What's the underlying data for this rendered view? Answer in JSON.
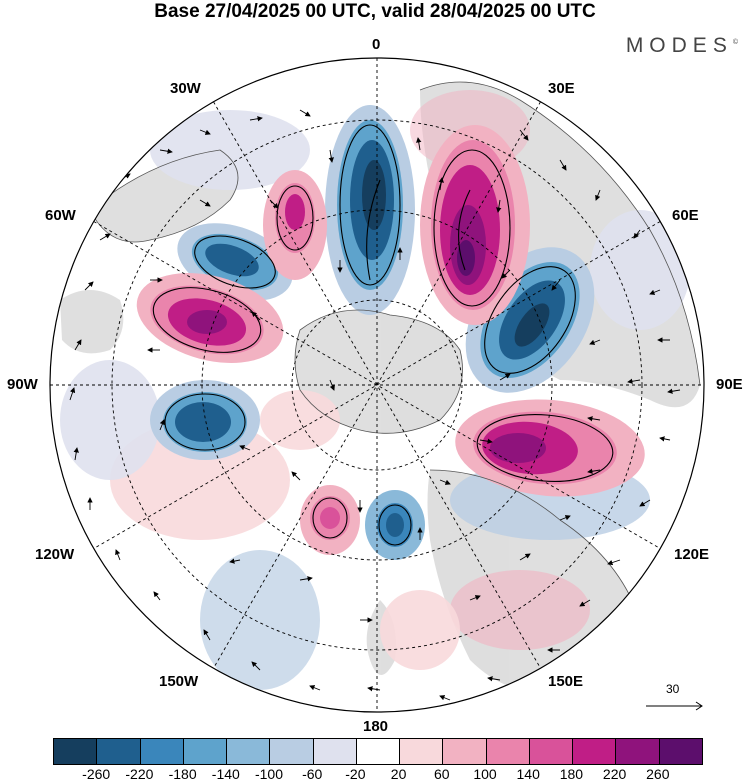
{
  "title": "Base 27/04/2025 00 UTC, valid 28/04/2025 00 UTC",
  "brand": "MODES",
  "brand_mark": "©",
  "longitude_labels": {
    "lon_0": "0",
    "lon_30e": "30E",
    "lon_60e": "60E",
    "lon_90e": "90E",
    "lon_120e": "120E",
    "lon_150e": "150E",
    "lon_180": "180",
    "lon_150w": "150W",
    "lon_120w": "120W",
    "lon_90w": "90W",
    "lon_60w": "60W",
    "lon_30w": "30W"
  },
  "vector_reference": {
    "value": "30"
  },
  "colorbar": {
    "colors": [
      "#153e5e",
      "#1f5f8e",
      "#3a86bb",
      "#5ea3cc",
      "#8ab9d9",
      "#b9cde3",
      "#dfe1ee",
      "#ffffff",
      "#f8d9dc",
      "#f2b2c2",
      "#ea84ac",
      "#d9529a",
      "#c01e86",
      "#8f137c",
      "#5c0e6c"
    ],
    "ticks": [
      "-260",
      "-220",
      "-180",
      "-140",
      "-100",
      "-60",
      "-20",
      "20",
      "60",
      "100",
      "140",
      "180",
      "220",
      "260"
    ]
  },
  "map_colors": {
    "ocean_bg": "#ffffff",
    "land": "#d9d9d9",
    "coast": "#555555",
    "grid": "#000000"
  }
}
